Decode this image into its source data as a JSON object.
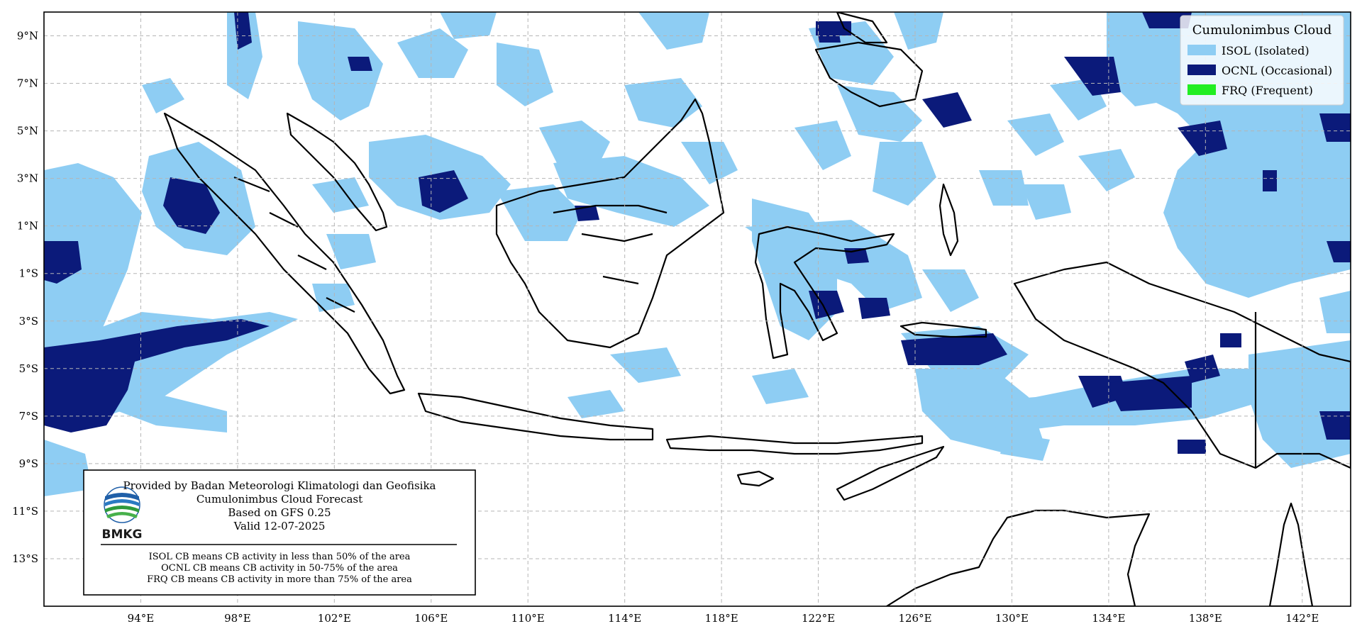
{
  "map": {
    "lon_range": [
      90,
      144
    ],
    "lat_range": [
      -15,
      10
    ],
    "lon_ticks": [
      "94°E",
      "98°E",
      "102°E",
      "106°E",
      "110°E",
      "114°E",
      "118°E",
      "122°E",
      "126°E",
      "130°E",
      "134°E",
      "138°E",
      "142°E"
    ],
    "lat_ticks": [
      "9°N",
      "7°N",
      "5°N",
      "3°N",
      "1°N",
      "1°S",
      "3°S",
      "5°S",
      "7°S",
      "9°S",
      "11°S",
      "13°S"
    ],
    "grid": true,
    "colors": {
      "isol": "#8ecdf3",
      "ocnl": "#0b1a7a",
      "frq": "#22ee22",
      "coast": "#000000",
      "grid": "#b5b5b5"
    }
  },
  "legend": {
    "title": "Cumulonimbus Cloud",
    "placement": "top-right",
    "items": [
      {
        "label": "ISOL (Isolated)",
        "color": "#8ecdf3"
      },
      {
        "label": "OCNL (Occasional)",
        "color": "#0b1a7a"
      },
      {
        "label": "FRQ (Frequent)",
        "color": "#22ee22"
      }
    ]
  },
  "info_box": {
    "provider": "Provided by Badan Meteorologi Klimatologi dan Geofisika",
    "product": "Cumulonimbus Cloud Forecast",
    "model": "Based on GFS 0.25",
    "valid": "Valid 12-07-2025",
    "logo_text": "BMKG",
    "notes": [
      "ISOL CB means CB activity in less than 50% of the area",
      "OCNL CB means CB activity in 50-75% of the area",
      "FRQ CB means CB activity in more than 75% of the area"
    ]
  }
}
